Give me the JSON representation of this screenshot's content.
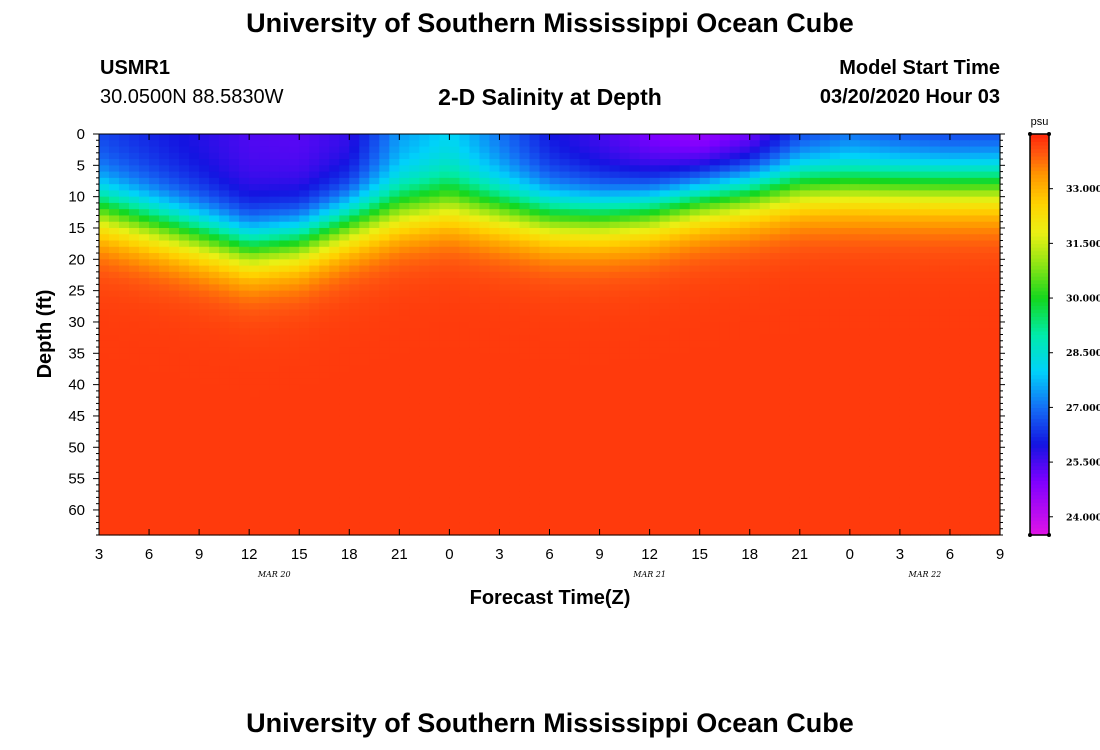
{
  "header": {
    "title": "University of Southern Mississippi Ocean Cube",
    "station_id": "USMR1",
    "station_coords": "30.0500N 88.5830W",
    "plot_title": "2-D Salinity at Depth",
    "start_label": "Model Start Time",
    "start_value": "03/20/2020 Hour 03"
  },
  "footer": {
    "title": "University of Southern Mississippi Ocean Cube"
  },
  "chart_data": {
    "type": "heatmap",
    "title": "2-D Salinity at Depth",
    "xlabel": "Forecast Time(Z)",
    "ylabel": "Depth (ft)",
    "x_range_hours": [
      0,
      54
    ],
    "x_tick_labels": [
      "3",
      "6",
      "9",
      "12",
      "15",
      "18",
      "21",
      "0",
      "3",
      "6",
      "9",
      "12",
      "15",
      "18",
      "21",
      "0",
      "3",
      "6",
      "9"
    ],
    "date_labels": [
      {
        "label": "MAR 20",
        "hour": 10.5
      },
      {
        "label": "MAR 21",
        "hour": 33
      },
      {
        "label": "MAR 22",
        "hour": 49.5
      }
    ],
    "y_range_ft": [
      0,
      64
    ],
    "y_ticks": [
      0,
      5,
      10,
      15,
      20,
      25,
      30,
      35,
      40,
      45,
      50,
      55,
      60
    ],
    "colorbar": {
      "unit": "psu",
      "range": [
        23.5,
        34.5
      ],
      "ticks": [
        "24.000",
        "25.500",
        "27.000",
        "28.500",
        "30.000",
        "31.500",
        "33.000"
      ],
      "tick_values": [
        24.0,
        25.5,
        27.0,
        28.5,
        30.0,
        31.5,
        33.0
      ]
    },
    "surface_salinity_psu": [
      {
        "hour": 0,
        "value": 26.4
      },
      {
        "hour": 3,
        "value": 26.1
      },
      {
        "hour": 6,
        "value": 25.8
      },
      {
        "hour": 9,
        "value": 25.4
      },
      {
        "hour": 12,
        "value": 25.3
      },
      {
        "hour": 15,
        "value": 25.6
      },
      {
        "hour": 18,
        "value": 27.3
      },
      {
        "hour": 21,
        "value": 27.9
      },
      {
        "hour": 24,
        "value": 26.9
      },
      {
        "hour": 27,
        "value": 25.9
      },
      {
        "hour": 30,
        "value": 25.4
      },
      {
        "hour": 33,
        "value": 24.8
      },
      {
        "hour": 36,
        "value": 24.2
      },
      {
        "hour": 39,
        "value": 24.6
      },
      {
        "hour": 42,
        "value": 26.0
      },
      {
        "hour": 45,
        "value": 26.5
      },
      {
        "hour": 48,
        "value": 26.2
      },
      {
        "hour": 51,
        "value": 26.0
      },
      {
        "hour": 54,
        "value": 26.1
      }
    ],
    "halocline_depth_ft": [
      {
        "hour": 0,
        "value": 12
      },
      {
        "hour": 3,
        "value": 14
      },
      {
        "hour": 6,
        "value": 16
      },
      {
        "hour": 9,
        "value": 18
      },
      {
        "hour": 12,
        "value": 17
      },
      {
        "hour": 15,
        "value": 14
      },
      {
        "hour": 18,
        "value": 12
      },
      {
        "hour": 21,
        "value": 11
      },
      {
        "hour": 24,
        "value": 12
      },
      {
        "hour": 27,
        "value": 13
      },
      {
        "hour": 30,
        "value": 13
      },
      {
        "hour": 33,
        "value": 12
      },
      {
        "hour": 36,
        "value": 10
      },
      {
        "hour": 39,
        "value": 9
      },
      {
        "hour": 42,
        "value": 8
      },
      {
        "hour": 45,
        "value": 8
      },
      {
        "hour": 48,
        "value": 8
      },
      {
        "hour": 51,
        "value": 8
      },
      {
        "hour": 54,
        "value": 8
      }
    ],
    "deep_salinity_psu": 34.3
  }
}
